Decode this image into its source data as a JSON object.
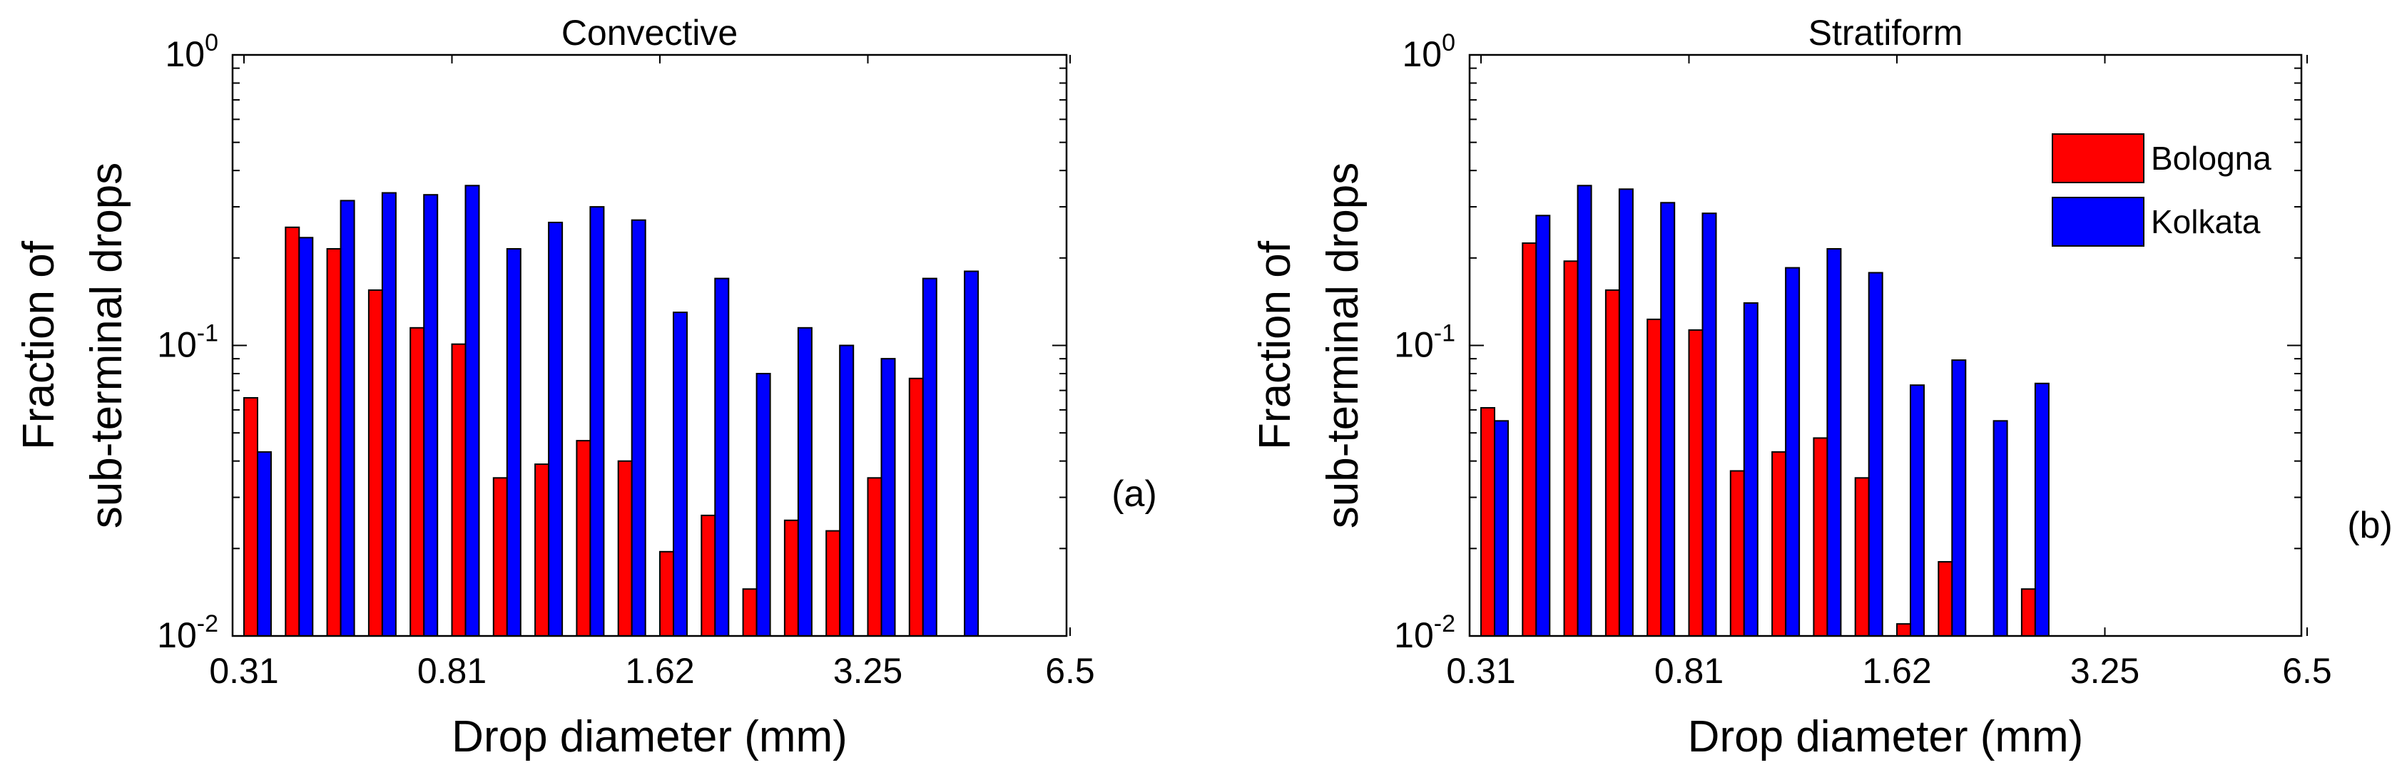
{
  "colors": {
    "bologna": "#ff0000",
    "kolkata": "#0000ff",
    "axis": "#000000"
  },
  "chart_data": [
    {
      "type": "bar",
      "panel_label": "(a)",
      "title": "Convective",
      "xlabel": "Drop diameter (mm)",
      "ylabel_lines": [
        "Fraction of",
        "sub-terminal drops"
      ],
      "yscale": "log",
      "ylim": [
        0.01,
        1
      ],
      "y_ticks": [
        {
          "base": "10",
          "exp": "-2"
        },
        {
          "base": "10",
          "exp": "-1"
        },
        {
          "base": "10",
          "exp": "0"
        }
      ],
      "x_tick_labels": [
        "0.31",
        "0.81",
        "1.62",
        "3.25",
        "6.5"
      ],
      "x_tick_bins": [
        0,
        5,
        10,
        15,
        20
      ],
      "n_bins": 20,
      "legend": [],
      "series": [
        {
          "name": "Bologna",
          "color": "#ff0000",
          "values": [
            0.066,
            0.255,
            0.215,
            0.155,
            0.115,
            0.101,
            0.035,
            0.039,
            0.047,
            0.04,
            0.0195,
            0.026,
            0.0145,
            0.025,
            0.023,
            0.035,
            0.077,
            null,
            null,
            null
          ]
        },
        {
          "name": "Kolkata",
          "color": "#0000ff",
          "values": [
            0.043,
            0.235,
            0.315,
            0.335,
            0.33,
            0.355,
            0.215,
            0.265,
            0.3,
            0.27,
            0.13,
            0.17,
            0.08,
            0.115,
            0.1,
            0.09,
            0.17,
            0.18,
            null,
            null
          ]
        }
      ]
    },
    {
      "type": "bar",
      "panel_label": "(b)",
      "title": "Stratiform",
      "xlabel": "Drop diameter (mm)",
      "ylabel_lines": [
        "Fraction of",
        "sub-terminal drops"
      ],
      "yscale": "log",
      "ylim": [
        0.01,
        1
      ],
      "y_ticks": [
        {
          "base": "10",
          "exp": "-2"
        },
        {
          "base": "10",
          "exp": "-1"
        },
        {
          "base": "10",
          "exp": "0"
        }
      ],
      "x_tick_labels": [
        "0.31",
        "0.81",
        "1.62",
        "3.25",
        "6.5"
      ],
      "x_tick_bins": [
        0,
        5,
        10,
        15,
        20
      ],
      "n_bins": 20,
      "legend": [
        "Bologna",
        "Kolkata"
      ],
      "series": [
        {
          "name": "Bologna",
          "color": "#ff0000",
          "values": [
            0.061,
            0.225,
            0.195,
            0.155,
            0.123,
            0.113,
            0.037,
            0.043,
            0.048,
            0.035,
            0.011,
            0.018,
            null,
            0.0145,
            null,
            null,
            null,
            null,
            null,
            null
          ]
        },
        {
          "name": "Kolkata",
          "color": "#0000ff",
          "values": [
            0.055,
            0.28,
            0.355,
            0.345,
            0.31,
            0.285,
            0.14,
            0.185,
            0.215,
            0.178,
            0.073,
            0.089,
            0.055,
            0.074,
            null,
            null,
            null,
            null,
            null,
            null
          ]
        }
      ]
    }
  ]
}
